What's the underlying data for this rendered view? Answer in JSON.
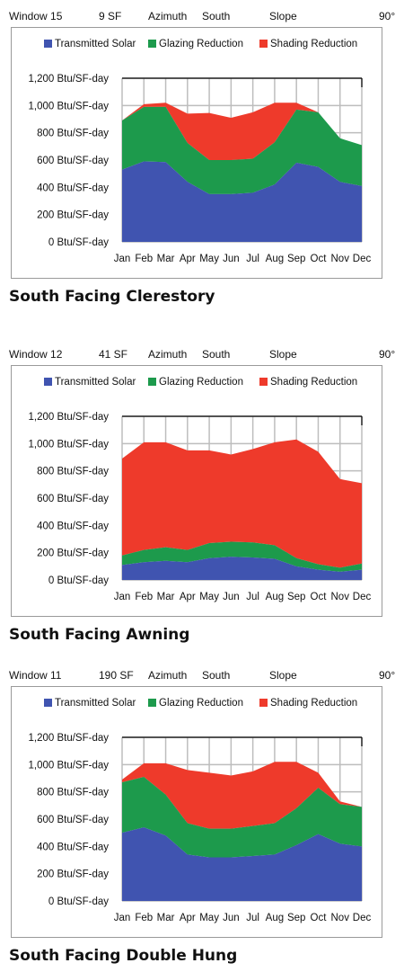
{
  "colors": {
    "transmitted": "#4054b0",
    "glazing": "#1d9a4c",
    "shading": "#ee3a2b"
  },
  "chart_data": [
    {
      "type": "area",
      "header": {
        "window": "Window 15",
        "area": "9 SF",
        "azimuth_label": "Azimuth",
        "azimuth": "South",
        "slope_label": "Slope",
        "slope": "90°"
      },
      "caption": "South Facing Clerestory",
      "categories": [
        "Jan",
        "Feb",
        "Mar",
        "Apr",
        "May",
        "Jun",
        "Jul",
        "Aug",
        "Sep",
        "Oct",
        "Nov",
        "Dec"
      ],
      "y_ticks": [
        "0 Btu/SF-day",
        "200 Btu/SF-day",
        "400 Btu/SF-day",
        "600 Btu/SF-day",
        "800 Btu/SF-day",
        "1,000 Btu/SF-day",
        "1,200 Btu/SF-day"
      ],
      "ylim": [
        0,
        1200
      ],
      "legend": [
        "Transmitted Solar",
        "Glazing Reduction",
        "Shading Reduction"
      ],
      "series": [
        {
          "name": "Transmitted Solar",
          "values": [
            530,
            590,
            585,
            440,
            350,
            350,
            360,
            420,
            580,
            550,
            440,
            410
          ]
        },
        {
          "name": "Glazing Reduction",
          "values": [
            360,
            400,
            405,
            285,
            250,
            250,
            250,
            310,
            390,
            400,
            320,
            300
          ]
        },
        {
          "name": "Shading Reduction",
          "values": [
            0,
            20,
            30,
            215,
            345,
            310,
            340,
            290,
            50,
            0,
            0,
            0
          ]
        }
      ]
    },
    {
      "type": "area",
      "header": {
        "window": "Window 12",
        "area": "41 SF",
        "azimuth_label": "Azimuth",
        "azimuth": "South",
        "slope_label": "Slope",
        "slope": "90°"
      },
      "caption": "South Facing Awning",
      "categories": [
        "Jan",
        "Feb",
        "Mar",
        "Apr",
        "May",
        "Jun",
        "Jul",
        "Aug",
        "Sep",
        "Oct",
        "Nov",
        "Dec"
      ],
      "y_ticks": [
        "0 Btu/SF-day",
        "200 Btu/SF-day",
        "400 Btu/SF-day",
        "600 Btu/SF-day",
        "800 Btu/SF-day",
        "1,000 Btu/SF-day",
        "1,200 Btu/SF-day"
      ],
      "ylim": [
        0,
        1200
      ],
      "legend": [
        "Transmitted Solar",
        "Glazing Reduction",
        "Shading Reduction"
      ],
      "series": [
        {
          "name": "Transmitted Solar",
          "values": [
            110,
            130,
            140,
            130,
            160,
            170,
            165,
            155,
            100,
            75,
            60,
            75
          ]
        },
        {
          "name": "Glazing Reduction",
          "values": [
            70,
            90,
            100,
            90,
            110,
            110,
            110,
            100,
            60,
            40,
            30,
            45
          ]
        },
        {
          "name": "Shading Reduction",
          "values": [
            710,
            790,
            770,
            730,
            680,
            640,
            685,
            755,
            870,
            825,
            650,
            590
          ]
        }
      ]
    },
    {
      "type": "area",
      "header": {
        "window": "Window 11",
        "area": "190 SF",
        "azimuth_label": "Azimuth",
        "azimuth": "South",
        "slope_label": "Slope",
        "slope": "90°"
      },
      "caption": "South Facing Double Hung",
      "categories": [
        "Jan",
        "Feb",
        "Mar",
        "Apr",
        "May",
        "Jun",
        "Jul",
        "Aug",
        "Sep",
        "Oct",
        "Nov",
        "Dec"
      ],
      "y_ticks": [
        "0 Btu/SF-day",
        "200 Btu/SF-day",
        "400 Btu/SF-day",
        "600 Btu/SF-day",
        "800 Btu/SF-day",
        "1,000 Btu/SF-day",
        "1,200 Btu/SF-day"
      ],
      "ylim": [
        0,
        1200
      ],
      "legend": [
        "Transmitted Solar",
        "Glazing Reduction",
        "Shading Reduction"
      ],
      "series": [
        {
          "name": "Transmitted Solar",
          "values": [
            500,
            540,
            480,
            340,
            320,
            320,
            330,
            340,
            410,
            490,
            420,
            400
          ]
        },
        {
          "name": "Glazing Reduction",
          "values": [
            370,
            370,
            300,
            230,
            210,
            210,
            220,
            230,
            270,
            340,
            290,
            290
          ]
        },
        {
          "name": "Shading Reduction",
          "values": [
            20,
            100,
            230,
            390,
            410,
            390,
            400,
            450,
            340,
            110,
            20,
            0
          ]
        }
      ]
    }
  ]
}
